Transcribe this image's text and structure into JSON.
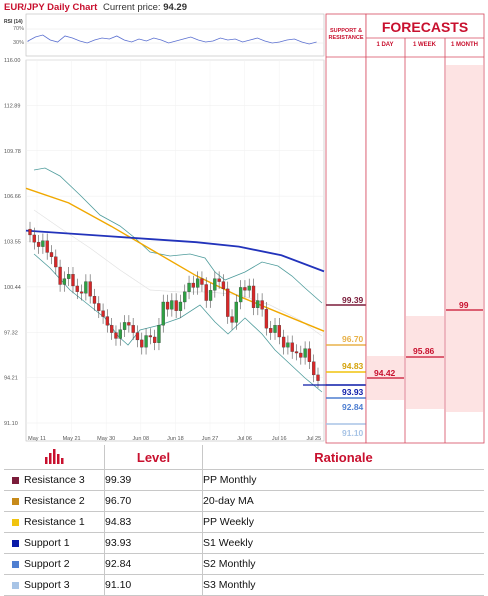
{
  "header": {
    "title": "EUR/JPY Daily Chart",
    "price_label": "Current price:",
    "price_value": "94.29",
    "rsi_label": "RSI (14)",
    "rsi_ticks": [
      "70%",
      "30%"
    ]
  },
  "forecasts": {
    "title": "FORECASTS",
    "sr_label": "SUPPORT & RESISTANCE",
    "columns": [
      "1 DAY",
      "1 WEEK",
      "1 MONTH"
    ],
    "values": [
      "94.42",
      "95.86",
      "99"
    ]
  },
  "sr_levels_panel": [
    {
      "value": "99.39",
      "color": "#7b1c3a"
    },
    {
      "value": "96.70",
      "color": "#e8b24a"
    },
    {
      "value": "94.83",
      "color": "#f1c40f"
    },
    {
      "value": "93.93",
      "color": "#0a1aa8"
    },
    {
      "value": "92.84",
      "color": "#4f7fd1"
    },
    {
      "value": "91.10",
      "color": "#a8c4e6"
    }
  ],
  "table": {
    "headers": [
      "",
      "Level",
      "Rationale"
    ],
    "rows": [
      {
        "name": "Resistance 3",
        "level": "99.39",
        "rationale": "PP Monthly",
        "color": "#7b1c3a"
      },
      {
        "name": "Resistance 2",
        "level": "96.70",
        "rationale": "20-day MA",
        "color": "#c78a1a"
      },
      {
        "name": "Resistance 1",
        "level": "94.83",
        "rationale": "PP Weekly",
        "color": "#f1c40f"
      },
      {
        "name": "Support 1",
        "level": "93.93",
        "rationale": "S1 Weekly",
        "color": "#0a1aa8"
      },
      {
        "name": "Support 2",
        "level": "92.84",
        "rationale": "S2 Monthly",
        "color": "#4f7fd1"
      },
      {
        "name": "Support 3",
        "level": "91.10",
        "rationale": "S3 Monthly",
        "color": "#a8c4e6"
      }
    ]
  },
  "chart_data": {
    "type": "line",
    "title": "EUR/JPY Daily Chart",
    "y_ticks": [
      "116.00",
      "112.89",
      "109.78",
      "106.66",
      "103.55",
      "100.44",
      "97.32",
      "94.21",
      "91.10"
    ],
    "ylim": [
      91.1,
      116.0
    ],
    "x_ticks": [
      "May 11",
      "May 21",
      "May 30",
      "Jun 08",
      "Jun 18",
      "Jun 27",
      "Jul 06",
      "Jul 16",
      "Jul 25"
    ],
    "series": [
      {
        "name": "",
        "color": "#f0a800",
        "values": [
          107.2,
          106.2,
          104.6,
          102.9,
          101.2,
          99.8,
          98.6,
          97.4
        ]
      },
      {
        "name": "",
        "color": "#2233bb",
        "values": [
          104.3,
          104.1,
          103.9,
          103.7,
          103.5,
          103.2,
          102.6,
          101.5
        ]
      }
    ],
    "closes": [
      104.0,
      103.5,
      103.2,
      103.6,
      102.8,
      102.5,
      101.8,
      100.6,
      101.0,
      101.3,
      100.5,
      100.1,
      100.0,
      100.8,
      99.8,
      99.3,
      98.8,
      98.4,
      97.8,
      97.3,
      96.9,
      97.5,
      98.0,
      97.8,
      97.3,
      96.8,
      96.3,
      97.1,
      97.0,
      96.6,
      97.8,
      99.4,
      98.9,
      99.5,
      98.8,
      99.4,
      100.1,
      100.7,
      100.4,
      101.0,
      100.6,
      99.5,
      100.2,
      101.0,
      100.8,
      100.3,
      98.4,
      98.0,
      99.4,
      100.4,
      100.2,
      100.5,
      99.0,
      99.5,
      98.9,
      97.6,
      97.3,
      97.8,
      97.0,
      96.3,
      96.6,
      96.0,
      95.9,
      95.6,
      96.2,
      95.3,
      94.4,
      94.0
    ]
  }
}
